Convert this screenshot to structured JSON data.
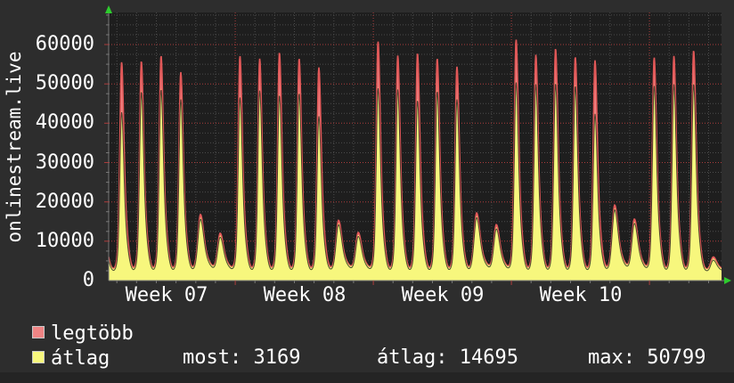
{
  "app": {
    "vertical_title": "onlinestream.live"
  },
  "colors": {
    "bg_outer": "#2d2d2d",
    "bg_inner": "#1e1e1e",
    "bg_bottom_strip": "#242424",
    "text": "#ffffff",
    "axis": "#787878",
    "grid_minor": "#4b4b4b",
    "grid_major": "#ab3c3c",
    "arrow": "#2ecc2e",
    "series_max_fill": "#ef8484",
    "series_max_line": "#e15858",
    "series_avg_fill": "#f7f77d",
    "series_avg_inner_line": "#141414",
    "swatch_border": "#c9c9c9"
  },
  "chart_data": {
    "type": "area",
    "title": "onlinestream.live",
    "xlabel": "",
    "ylabel": "onlinestream.live",
    "ylim": [
      0,
      68000
    ],
    "y_ticks": [
      0,
      10000,
      20000,
      30000,
      40000,
      50000,
      60000
    ],
    "y_minor_step": 2500,
    "x_tick_labels": [
      "Week 07",
      "Week 08",
      "Week 09",
      "Week 10"
    ],
    "grid": "dotted, red major lines every 10000 (y) and weekly (x), gray minor daily/2500",
    "legend_position": "bottom-left",
    "series_meta": [
      {
        "name": "legtöbb",
        "role": "daily maximum",
        "color": "#ef8484"
      },
      {
        "name": "átlag",
        "role": "daily average",
        "color": "#f7f77d"
      }
    ],
    "baseline_value": 2500,
    "lead_in": {
      "max": 30000,
      "avg": 28000
    },
    "days": [
      {
        "max": 55500,
        "avg": 43200
      },
      {
        "max": 55800,
        "avg": 48400
      },
      {
        "max": 57200,
        "avg": 49000
      },
      {
        "max": 53000,
        "avg": 46500
      },
      {
        "max": 16800,
        "avg": 16000
      },
      {
        "max": 12000,
        "avg": 11400
      },
      {
        "max": 57100,
        "avg": 47000
      },
      {
        "max": 56400,
        "avg": 48700
      },
      {
        "max": 58000,
        "avg": 47500
      },
      {
        "max": 56500,
        "avg": 48000
      },
      {
        "max": 54200,
        "avg": 42200
      },
      {
        "max": 15300,
        "avg": 14600
      },
      {
        "max": 12200,
        "avg": 11600
      },
      {
        "max": 60800,
        "avg": 49300
      },
      {
        "max": 57200,
        "avg": 49000
      },
      {
        "max": 57800,
        "avg": 46200
      },
      {
        "max": 56500,
        "avg": 48500
      },
      {
        "max": 54400,
        "avg": 46500
      },
      {
        "max": 17200,
        "avg": 16400
      },
      {
        "max": 14200,
        "avg": 13500
      },
      {
        "max": 61300,
        "avg": 50799
      },
      {
        "max": 57400,
        "avg": 50300
      },
      {
        "max": 59000,
        "avg": 50500
      },
      {
        "max": 56900,
        "avg": 49900
      },
      {
        "max": 56000,
        "avg": 42800
      },
      {
        "max": 19200,
        "avg": 18400
      },
      {
        "max": 15600,
        "avg": 14900
      },
      {
        "max": 56700,
        "avg": 49900
      },
      {
        "max": 57100,
        "avg": 50300
      },
      {
        "max": 58500,
        "avg": 50400
      },
      {
        "max": 6000,
        "avg": 5600
      }
    ],
    "stats": {
      "most": 3169,
      "atlag": 14695,
      "max": 50799
    }
  },
  "legend": {
    "items": [
      {
        "label": "legtöbb",
        "color": "#ef8484"
      },
      {
        "label": "átlag",
        "color": "#f7f77d"
      }
    ],
    "stats": [
      {
        "id": "most",
        "text": "most: 3169"
      },
      {
        "id": "atlag",
        "text": "átlag: 14695"
      },
      {
        "id": "max",
        "text": "max: 50799"
      }
    ]
  }
}
